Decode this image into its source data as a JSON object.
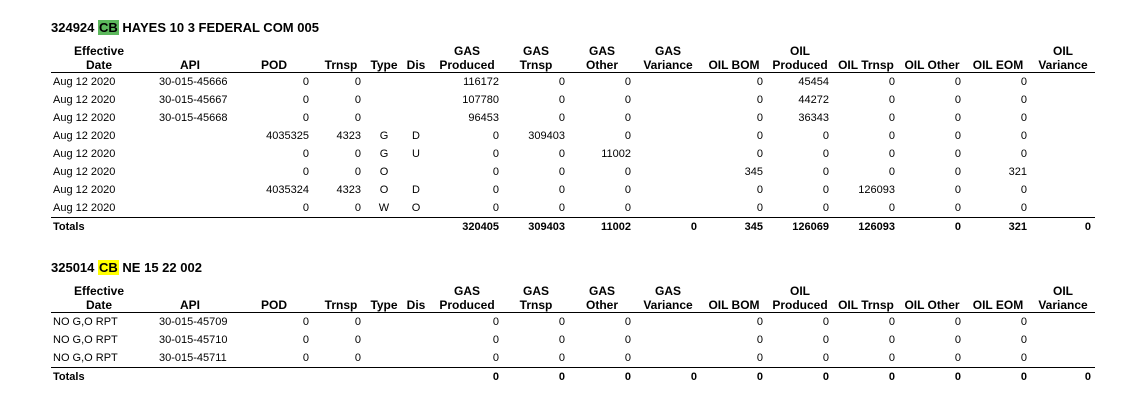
{
  "headers": [
    [
      "Effective",
      "Date"
    ],
    [
      "",
      "API"
    ],
    [
      "",
      "POD"
    ],
    [
      "",
      "Trnsp"
    ],
    [
      "",
      "Type"
    ],
    [
      "",
      "Dis"
    ],
    [
      "GAS",
      "Produced"
    ],
    [
      "GAS",
      "Trnsp"
    ],
    [
      "GAS",
      "Other"
    ],
    [
      "GAS",
      "Variance"
    ],
    [
      "",
      "OIL BOM"
    ],
    [
      "OIL",
      "Produced"
    ],
    [
      "",
      "OIL Trnsp"
    ],
    [
      "",
      "OIL Other"
    ],
    [
      "",
      "OIL EOM"
    ],
    [
      "OIL",
      "Variance"
    ]
  ],
  "sections": [
    {
      "id": "324924",
      "code": "CB",
      "code_color": "#5cb85c",
      "name": "HAYES 10 3 FEDERAL COM 005",
      "rows": [
        [
          "Aug 12 2020",
          "30-015-45666",
          "0",
          "0",
          "",
          "",
          "116172",
          "0",
          "0",
          "",
          "0",
          "45454",
          "0",
          "0",
          "0",
          ""
        ],
        [
          "Aug 12 2020",
          "30-015-45667",
          "0",
          "0",
          "",
          "",
          "107780",
          "0",
          "0",
          "",
          "0",
          "44272",
          "0",
          "0",
          "0",
          ""
        ],
        [
          "Aug 12 2020",
          "30-015-45668",
          "0",
          "0",
          "",
          "",
          "96453",
          "0",
          "0",
          "",
          "0",
          "36343",
          "0",
          "0",
          "0",
          ""
        ],
        [
          "Aug 12 2020",
          "",
          "4035325",
          "4323",
          "G",
          "D",
          "0",
          "309403",
          "0",
          "",
          "0",
          "0",
          "0",
          "0",
          "0",
          ""
        ],
        [
          "Aug 12 2020",
          "",
          "0",
          "0",
          "G",
          "U",
          "0",
          "0",
          "11002",
          "",
          "0",
          "0",
          "0",
          "0",
          "0",
          ""
        ],
        [
          "Aug 12 2020",
          "",
          "0",
          "0",
          "O",
          "",
          "0",
          "0",
          "0",
          "",
          "345",
          "0",
          "0",
          "0",
          "321",
          ""
        ],
        [
          "Aug 12 2020",
          "",
          "4035324",
          "4323",
          "O",
          "D",
          "0",
          "0",
          "0",
          "",
          "0",
          "0",
          "126093",
          "0",
          "0",
          ""
        ],
        [
          "Aug 12 2020",
          "",
          "0",
          "0",
          "W",
          "O",
          "0",
          "0",
          "0",
          "",
          "0",
          "0",
          "0",
          "0",
          "0",
          ""
        ]
      ],
      "totals": [
        "Totals",
        "",
        "",
        "",
        "",
        "",
        "320405",
        "309403",
        "11002",
        "0",
        "345",
        "126069",
        "126093",
        "0",
        "321",
        "0"
      ]
    },
    {
      "id": "325014",
      "code": "CB",
      "code_color": "#ffff00",
      "name": "NE 15 22 002",
      "rows": [
        [
          "NO G,O RPT",
          "30-015-45709",
          "0",
          "0",
          "",
          "",
          "0",
          "0",
          "0",
          "",
          "0",
          "0",
          "0",
          "0",
          "0",
          ""
        ],
        [
          "NO G,O RPT",
          "30-015-45710",
          "0",
          "0",
          "",
          "",
          "0",
          "0",
          "0",
          "",
          "0",
          "0",
          "0",
          "0",
          "0",
          ""
        ],
        [
          "NO G,O RPT",
          "30-015-45711",
          "0",
          "0",
          "",
          "",
          "0",
          "0",
          "0",
          "",
          "0",
          "0",
          "0",
          "0",
          "0",
          ""
        ]
      ],
      "totals": [
        "Totals",
        "",
        "",
        "",
        "",
        "",
        "0",
        "0",
        "0",
        "0",
        "0",
        "0",
        "0",
        "0",
        "0",
        "0"
      ]
    }
  ]
}
